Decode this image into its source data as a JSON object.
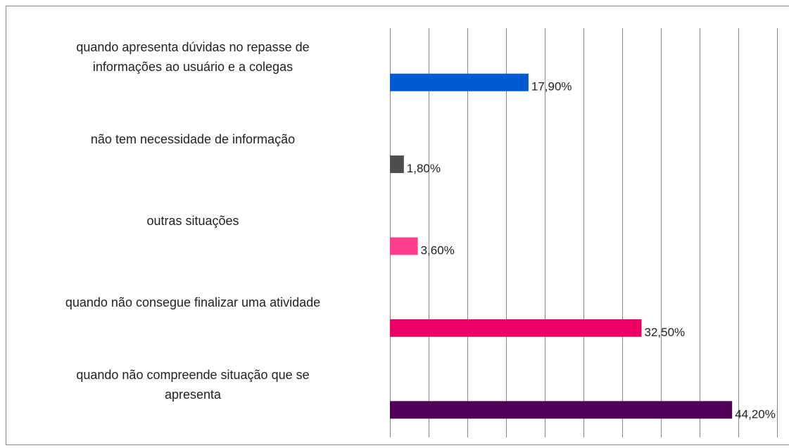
{
  "chart_data": {
    "type": "barh",
    "categories": [
      "quando apresenta dúvidas no repasse de\ninformações ao usuário e a colegas",
      "não tem necessidade de informação",
      "outras situações",
      "quando não consegue finalizar uma atividade",
      "quando não compreende situação que se\napresenta"
    ],
    "values": [
      17.9,
      1.8,
      3.6,
      32.5,
      44.2
    ],
    "value_labels": [
      "17,90%",
      "1,80%",
      "3,60%",
      "32,50%",
      "44,20%"
    ],
    "colors": [
      "#005bd3",
      "#4d4d4d",
      "#ff3f8e",
      "#ea0064",
      "#4f0056"
    ],
    "xlim": [
      0,
      50
    ],
    "xticks": [
      0,
      5,
      10,
      15,
      20,
      25,
      30,
      35,
      40,
      45,
      50
    ],
    "grid": true
  }
}
